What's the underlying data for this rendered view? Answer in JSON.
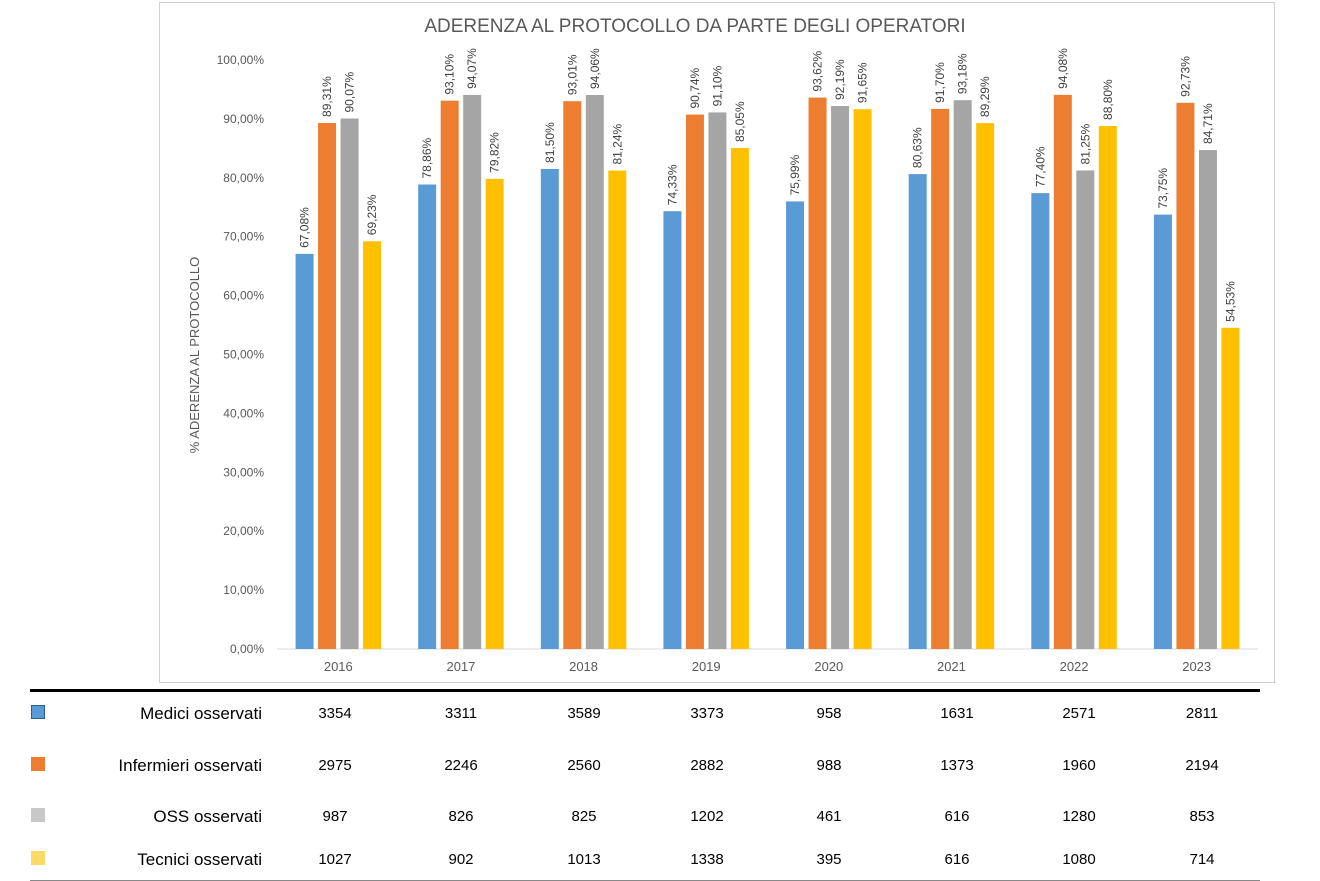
{
  "chart_data": {
    "type": "bar",
    "title": "ADERENZA AL PROTOCOLLO DA PARTE DEGLI OPERATORI",
    "ylabel": "% ADERENZA AL PROTOCOLLO",
    "xlabel": "",
    "ylim": [
      0,
      100
    ],
    "yticks": [
      0,
      10,
      20,
      30,
      40,
      50,
      60,
      70,
      80,
      90,
      100
    ],
    "ytick_labels": [
      "0,00%",
      "10,00%",
      "20,00%",
      "30,00%",
      "40,00%",
      "50,00%",
      "60,00%",
      "70,00%",
      "80,00%",
      "90,00%",
      "100,00%"
    ],
    "categories": [
      "2016",
      "2017",
      "2018",
      "2019",
      "2020",
      "2021",
      "2022",
      "2023"
    ],
    "grid": false,
    "legend": "none",
    "series": [
      {
        "color": "#5B9BD5",
        "values": [
          67.08,
          78.86,
          81.5,
          74.33,
          75.99,
          80.63,
          77.4,
          73.75
        ],
        "labels": [
          "67,08%",
          "78,86%",
          "81,50%",
          "74,33%",
          "75,99%",
          "80,63%",
          "77,40%",
          "73,75%"
        ]
      },
      {
        "color": "#ED7D31",
        "values": [
          89.31,
          93.1,
          93.01,
          90.74,
          93.62,
          91.7,
          94.08,
          92.73
        ],
        "labels": [
          "89,31%",
          "93,10%",
          "93,01%",
          "90,74%",
          "93,62%",
          "91,70%",
          "94,08%",
          "92,73%"
        ]
      },
      {
        "color": "#A5A5A5",
        "values": [
          90.07,
          94.07,
          94.06,
          91.1,
          92.19,
          93.18,
          81.25,
          84.71
        ],
        "labels": [
          "90,07%",
          "94,07%",
          "94,06%",
          "91,10%",
          "92,19%",
          "93,18%",
          "81,25%",
          "84,71%"
        ]
      },
      {
        "color": "#FFC000",
        "values": [
          69.23,
          79.82,
          81.24,
          85.05,
          91.65,
          89.29,
          88.8,
          54.53
        ],
        "labels": [
          "69,23%",
          "79,82%",
          "81,24%",
          "85,05%",
          "91,65%",
          "89,29%",
          "88,80%",
          "54,53%"
        ]
      }
    ]
  },
  "table": {
    "rows": [
      {
        "label": "Medici osservati",
        "swatch_color": "#5B9BD5",
        "swatch_border": "#2E5F8A",
        "values": [
          "3354",
          "3311",
          "3589",
          "3373",
          "958",
          "1631",
          "2571",
          "2811"
        ]
      },
      {
        "label": "Infermieri osservati",
        "swatch_color": "#ED7D31",
        "swatch_border": "#ED7D31",
        "values": [
          "2975",
          "2246",
          "2560",
          "2882",
          "988",
          "1373",
          "1960",
          "2194"
        ]
      },
      {
        "label": "OSS osservati",
        "swatch_color": "#C8C8C8",
        "swatch_border": "#C8C8C8",
        "values": [
          "987",
          "826",
          "825",
          "1202",
          "461",
          "616",
          "1280",
          "853"
        ]
      },
      {
        "label": "Tecnici osservati",
        "swatch_color": "#FFD966",
        "swatch_border": "#FFD966",
        "values": [
          "1027",
          "902",
          "1013",
          "1338",
          "395",
          "616",
          "1080",
          "714"
        ]
      }
    ]
  }
}
